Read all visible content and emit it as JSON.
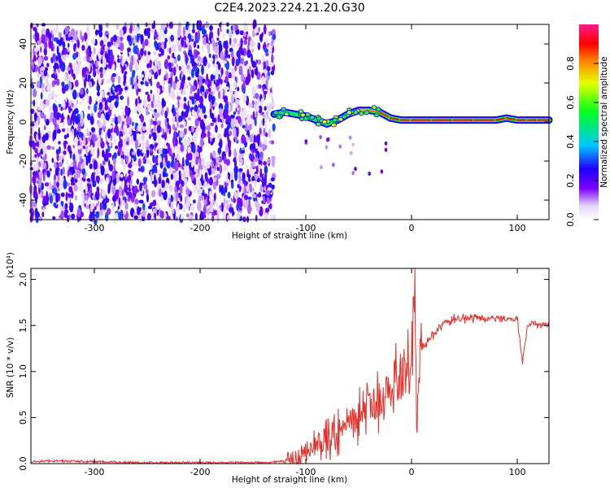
{
  "title": "C2E4.2023.224.21.20.G30",
  "colors": {
    "snr_line": "#e8302a",
    "frame": "#000000",
    "rescale_line": "#000000"
  },
  "chart_data": [
    {
      "type": "heatmap",
      "xlabel": "Height of straight line (km)",
      "ylabel": "Frequency (Hz)",
      "xlim": [
        -360,
        130
      ],
      "ylim": [
        -50,
        50
      ],
      "x_ticks": [
        -300,
        -200,
        -100,
        0,
        100
      ],
      "x_tick_labels": [
        "-300",
        "-200",
        "-100",
        "0",
        "100"
      ],
      "y_ticks": [
        -40,
        -20,
        0,
        20,
        40
      ],
      "y_tick_labels": [
        "-40",
        "-20",
        "0",
        "20",
        "40"
      ],
      "colorbar": {
        "label": "Normalized spectral amplitude",
        "range": [
          0,
          1
        ],
        "ticks": [
          0,
          0.2,
          0.4,
          0.6,
          0.8
        ],
        "tick_labels": [
          "0.0",
          "0.2",
          "0.4",
          "0.6",
          "0.8"
        ],
        "colormap": "rainbow (white-purple-blue-cyan-green-yellow-red-magenta)"
      },
      "noise_region_x": [
        -360,
        -130
      ],
      "signal_track": {
        "x": [
          -130,
          -120,
          -110,
          -100,
          -90,
          -80,
          -70,
          -60,
          -50,
          -40,
          -30,
          -20,
          -10,
          0,
          20,
          40,
          60,
          80,
          90,
          100,
          110,
          120,
          130
        ],
        "frequency": [
          4,
          5,
          4,
          3,
          1,
          -1,
          1,
          4,
          6,
          6,
          5,
          2,
          1,
          1,
          1,
          1,
          1,
          1,
          2,
          1,
          1,
          1,
          1
        ],
        "amplitude": [
          0.45,
          0.5,
          0.5,
          0.45,
          0.5,
          0.45,
          0.55,
          0.6,
          0.75,
          0.8,
          0.85,
          0.9,
          0.95,
          0.95,
          0.95,
          0.95,
          0.95,
          0.95,
          0.9,
          0.95,
          0.95,
          0.95,
          0.95
        ]
      }
    },
    {
      "type": "line",
      "xlabel": "Height of straight line (km)",
      "ylabel": "SNR (10 * v/v)",
      "y_multiplier_label": "(x10⁴)",
      "xlim": [
        -360,
        130
      ],
      "ylim": [
        0,
        2.12
      ],
      "x_ticks": [
        -300,
        -200,
        -100,
        0,
        100
      ],
      "x_tick_labels": [
        "-300",
        "-200",
        "-100",
        "0",
        "100"
      ],
      "y_ticks": [
        0,
        0.5,
        1.0,
        1.5,
        2.0
      ],
      "y_tick_labels": [
        "0.0",
        "0.5",
        "1.0",
        "1.5",
        "2.0"
      ],
      "series": [
        {
          "x": [
            -360,
            -340,
            -300,
            -250,
            -200,
            -150,
            -125,
            -110,
            -100,
            -90,
            -80,
            -70,
            -60,
            -50,
            -40,
            -30,
            -20,
            -10,
            0,
            3,
            5,
            8,
            10,
            20,
            30,
            40,
            60,
            80,
            100,
            105,
            110,
            120,
            130
          ],
          "values": [
            0.02,
            0.03,
            0.02,
            0.01,
            0.01,
            0.01,
            0.02,
            0.05,
            0.12,
            0.2,
            0.28,
            0.35,
            0.42,
            0.5,
            0.6,
            0.7,
            0.8,
            0.95,
            1.1,
            2.1,
            0.3,
            1.2,
            1.25,
            1.4,
            1.52,
            1.57,
            1.58,
            1.58,
            1.57,
            1.1,
            1.52,
            1.52,
            1.5
          ]
        }
      ]
    }
  ]
}
